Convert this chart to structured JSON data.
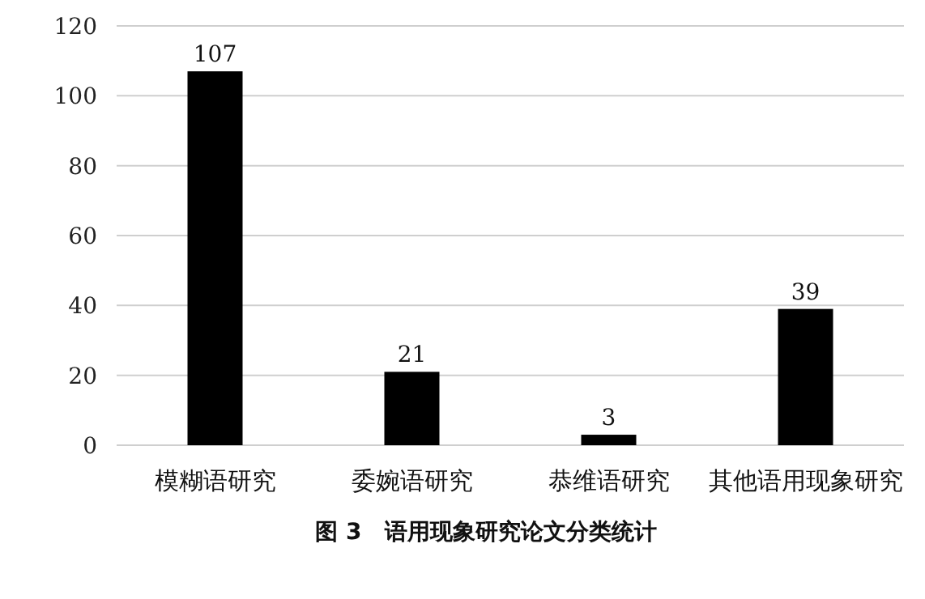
{
  "chart_data": {
    "type": "bar",
    "title": "图 3　语用现象研究论文分类统计",
    "categories": [
      "模糊语研究",
      "委婉语研究",
      "恭维语研究",
      "其他语用现象研究"
    ],
    "values": [
      107,
      21,
      3,
      39
    ],
    "color": "#000000",
    "ylim": [
      0,
      120
    ],
    "yticks": [
      0,
      20,
      40,
      60,
      80,
      100,
      120
    ],
    "grid": "y",
    "data_labels": true
  }
}
